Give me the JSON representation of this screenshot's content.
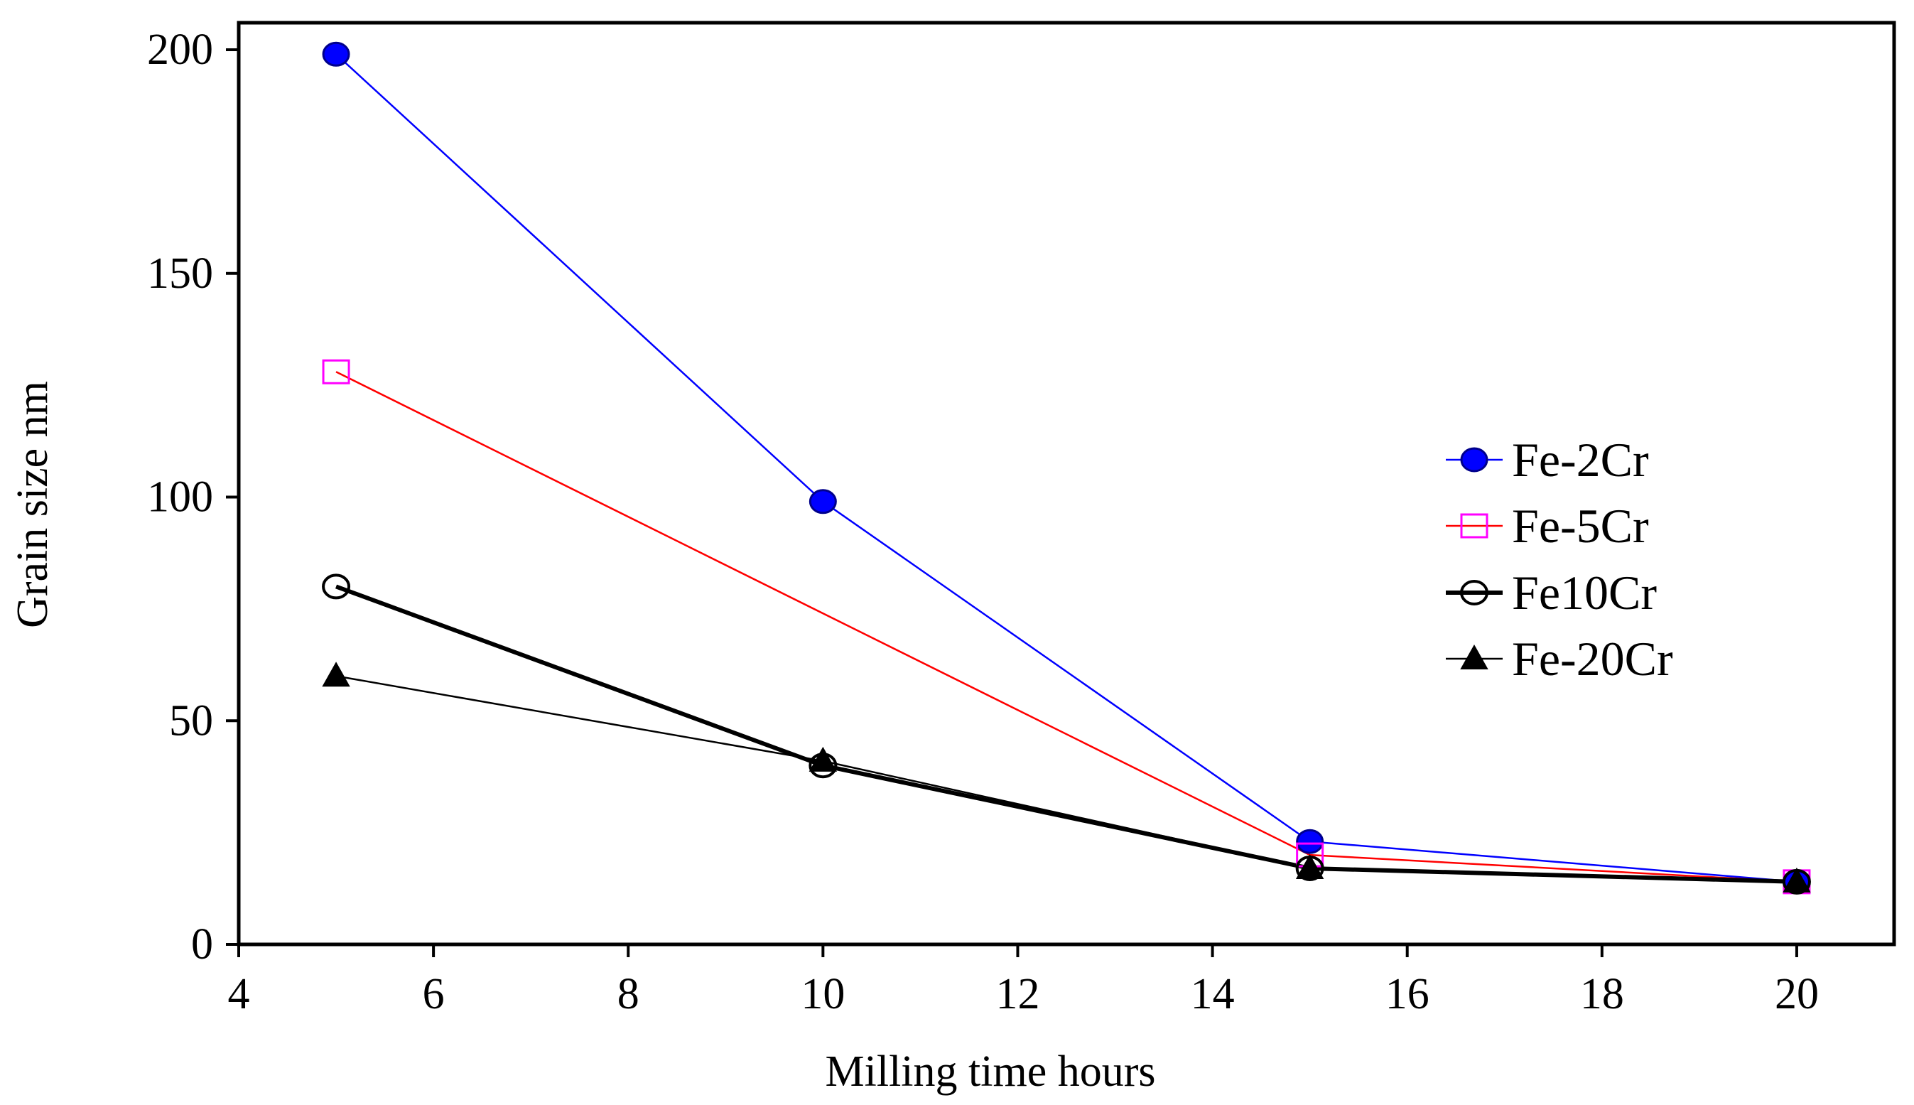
{
  "chart_data": {
    "type": "line",
    "title": "",
    "xlabel": "Milling time hours",
    "ylabel": "Grain size nm",
    "xlim": [
      4,
      21
    ],
    "ylim": [
      0,
      200
    ],
    "xticks": [
      4,
      6,
      8,
      10,
      12,
      14,
      16,
      18,
      20
    ],
    "yticks": [
      0,
      50,
      100,
      150,
      200
    ],
    "grid": false,
    "legend_position": "right",
    "series": [
      {
        "name": "Fe-2Cr",
        "x": [
          5,
          10,
          15,
          20
        ],
        "values": [
          199,
          99,
          23,
          14
        ],
        "color": "#0000FF",
        "marker": "filled-circle",
        "marker_fill": "#0000FF",
        "marker_stroke": "#00008B",
        "line_weight": "thin"
      },
      {
        "name": "Fe-5Cr",
        "x": [
          5,
          10,
          15,
          20
        ],
        "values": [
          128,
          null,
          20,
          14
        ],
        "color": "#FF0000",
        "marker": "open-square",
        "marker_fill": "none",
        "marker_stroke": "#FF00FF",
        "line_weight": "thin"
      },
      {
        "name": "Fe10Cr",
        "x": [
          5,
          10,
          15,
          20
        ],
        "values": [
          80,
          40,
          17,
          14
        ],
        "color": "#000000",
        "marker": "open-circle",
        "marker_fill": "none",
        "marker_stroke": "#000000",
        "line_weight": "thick"
      },
      {
        "name": "Fe-20Cr",
        "x": [
          5,
          10,
          15,
          20
        ],
        "values": [
          60,
          41,
          17,
          14
        ],
        "color": "#000000",
        "marker": "filled-triangle",
        "marker_fill": "#000000",
        "marker_stroke": "#000000",
        "line_weight": "thin"
      }
    ]
  }
}
